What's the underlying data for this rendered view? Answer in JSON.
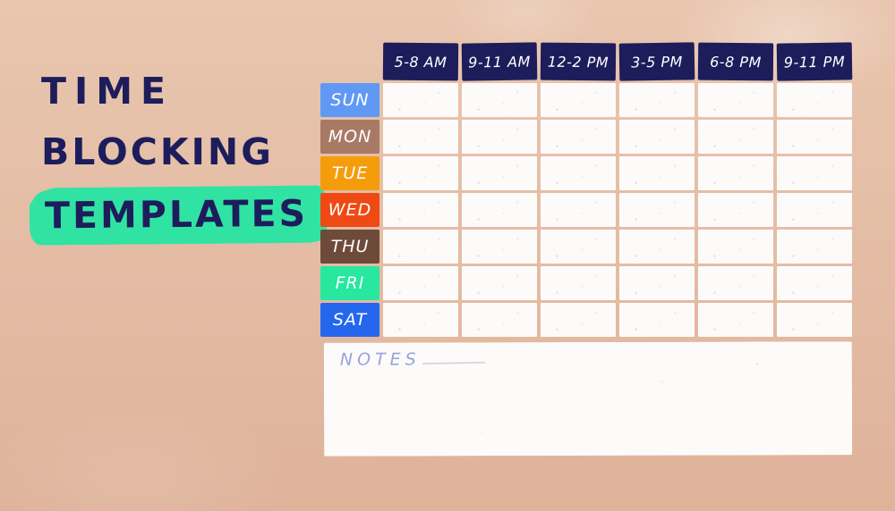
{
  "title": {
    "line1": "TIME",
    "line2": "BLOCKING",
    "line3": "TEMPLATES"
  },
  "colors": {
    "background_top": "#E9C6AF",
    "background_bottom": "#DFB29A",
    "title_text": "#1D1D5C",
    "highlight": "#31E3A3",
    "header_bg": "#1D1D5C",
    "header_text": "#FFFFFF",
    "cell_bg": "#FDFBFA",
    "notes_label_color": "#9AA3DA"
  },
  "schedule": {
    "time_slots": [
      "5-8 AM",
      "9-11 AM",
      "12-2 PM",
      "3-5 PM",
      "6-8 PM",
      "9-11 PM"
    ],
    "days": [
      {
        "label": "SUN",
        "color": "#6099F4"
      },
      {
        "label": "MON",
        "color": "#A87A65"
      },
      {
        "label": "TUE",
        "color": "#F49D0C"
      },
      {
        "label": "WED",
        "color": "#EF4A14"
      },
      {
        "label": "THU",
        "color": "#6E4A3A"
      },
      {
        "label": "FRI",
        "color": "#28E79E"
      },
      {
        "label": "SAT",
        "color": "#2566EE"
      }
    ]
  },
  "notes": {
    "label": "NOTES"
  }
}
